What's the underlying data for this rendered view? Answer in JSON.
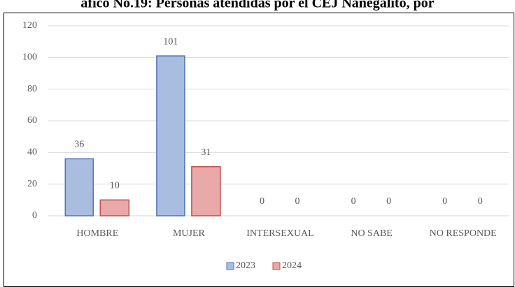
{
  "chart_data": {
    "type": "bar",
    "title": "áfico No.19: Personas atendidas por el CEJ Nanegalito, por",
    "categories": [
      "HOMBRE",
      "MUJER",
      "INTERSEXUAL",
      "NO SABE",
      "NO RESPONDE"
    ],
    "series": [
      {
        "name": "2023",
        "color": "#a9bde0",
        "stroke": "#4f74b5",
        "values": [
          36,
          101,
          0,
          0,
          0
        ]
      },
      {
        "name": "2024",
        "color": "#e8a9a8",
        "stroke": "#c0504d",
        "values": [
          10,
          31,
          0,
          0,
          0
        ]
      }
    ],
    "ylim": [
      0,
      120
    ],
    "yticks": [
      0,
      20,
      40,
      60,
      80,
      100,
      120
    ],
    "grid": true,
    "legend": "bottom"
  }
}
